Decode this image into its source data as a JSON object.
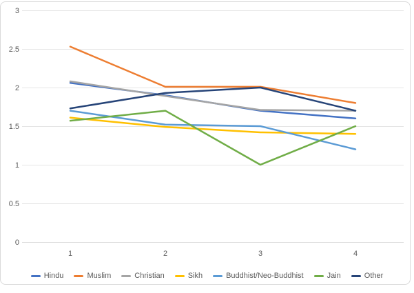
{
  "chart_data": {
    "type": "line",
    "x": [
      "1",
      "2",
      "3",
      "4"
    ],
    "series": [
      {
        "name": "Hindu",
        "color": "#4472C4",
        "values": [
          2.06,
          1.9,
          1.7,
          1.6
        ]
      },
      {
        "name": "Muslim",
        "color": "#ED7D31",
        "values": [
          2.53,
          2.01,
          2.01,
          1.8
        ]
      },
      {
        "name": "Christian",
        "color": "#A5A5A5",
        "values": [
          2.08,
          1.89,
          1.71,
          1.7
        ]
      },
      {
        "name": "Sikh",
        "color": "#FFC000",
        "values": [
          1.61,
          1.49,
          1.42,
          1.4
        ]
      },
      {
        "name": "Buddhist/Neo-Buddhist",
        "color": "#5B9BD5",
        "values": [
          1.7,
          1.52,
          1.5,
          1.2
        ]
      },
      {
        "name": "Jain",
        "color": "#70AD47",
        "values": [
          1.57,
          1.7,
          1.0,
          1.5
        ]
      },
      {
        "name": "Other",
        "color": "#264478",
        "values": [
          1.73,
          1.93,
          2.0,
          1.7
        ]
      }
    ],
    "title": "",
    "xlabel": "",
    "ylabel": "",
    "ylim": [
      0,
      3
    ],
    "yticks": [
      0,
      0.5,
      1,
      1.5,
      2,
      2.5,
      3
    ],
    "ytick_labels": [
      "0",
      "0.5",
      "1",
      "1.5",
      "2",
      "2.5",
      "3"
    ],
    "xtick_labels": [
      "1",
      "2",
      "3",
      "4"
    ],
    "grid": true,
    "legend_position": "bottom"
  },
  "styles": {
    "background": "#FFFFFF",
    "frame_border_color": "#D9D9D9",
    "grid_color": "#E5E5E5",
    "zero_line_color": "#D9D9D9",
    "axis_text_color": "#595959"
  }
}
